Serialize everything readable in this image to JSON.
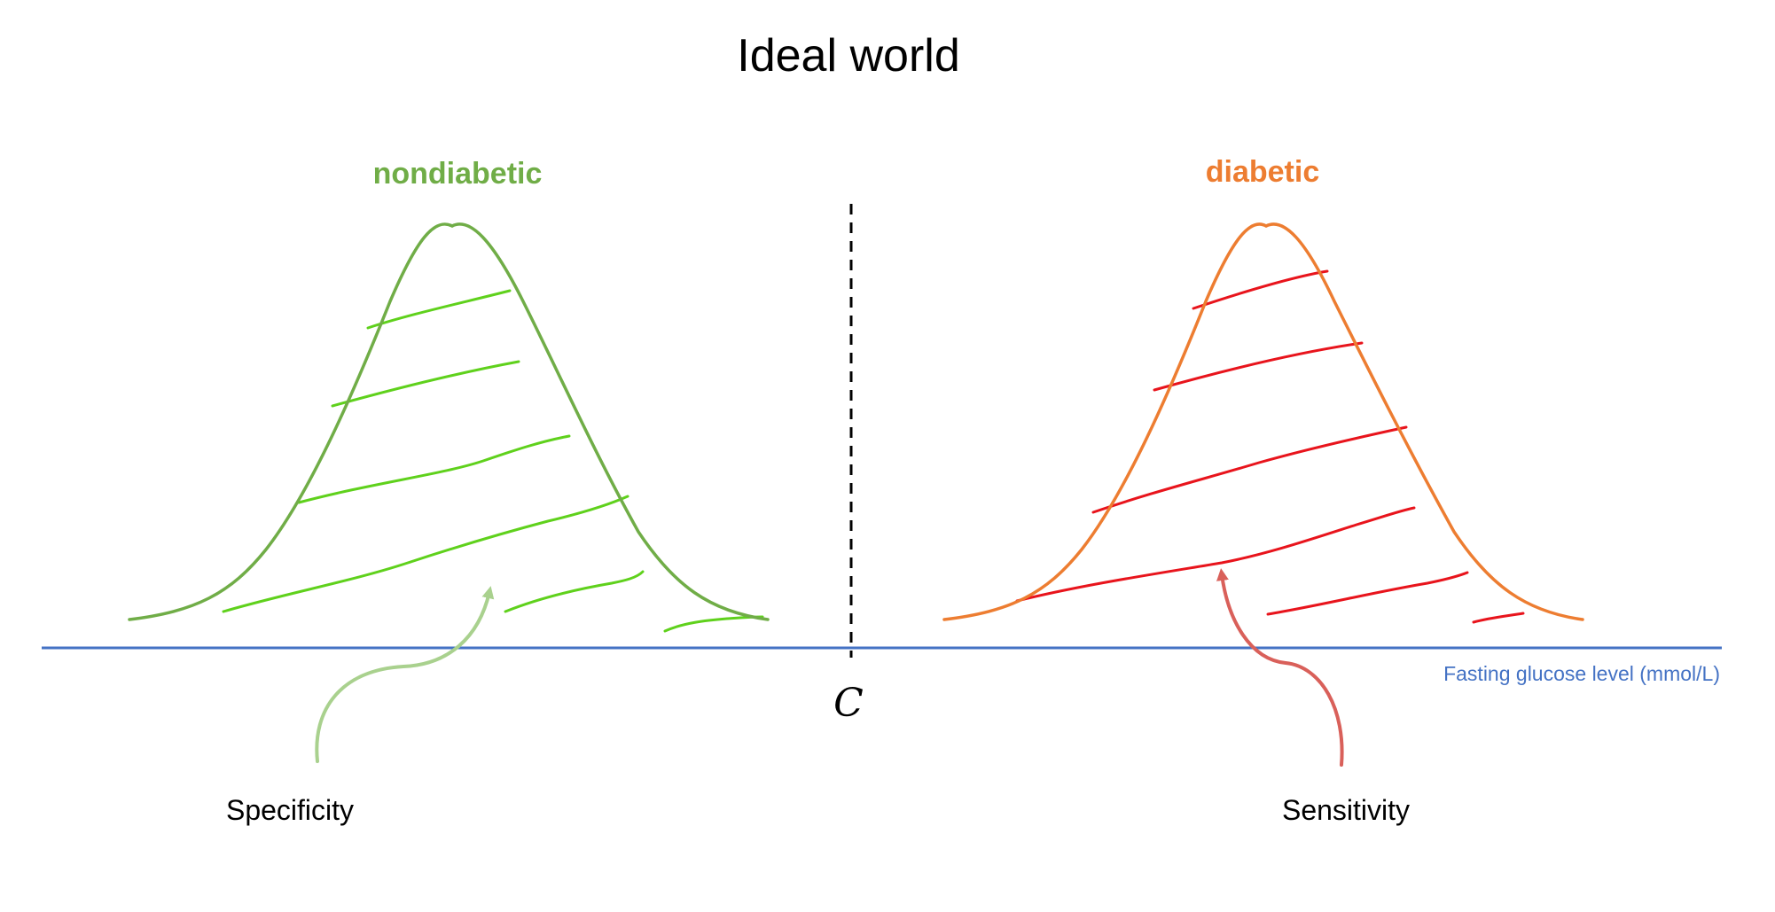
{
  "title": "Ideal world",
  "groups": {
    "nondiabetic": {
      "label": "nondiabetic",
      "color": "#70ad47",
      "hatch_color": "#5fd11c"
    },
    "diabetic": {
      "label": "diabetic",
      "color": "#ed7d31",
      "hatch_color": "#e8141c"
    }
  },
  "axis": {
    "label": "Fasting glucose level (mmol/L)",
    "color": "#4472c4"
  },
  "cutoff": {
    "label": "C",
    "color": "#000000"
  },
  "annotations": {
    "specificity": {
      "label": "Specificity",
      "arrow_color": "#a9d18e"
    },
    "sensitivity": {
      "label": "Sensitivity",
      "arrow_color": "#d9605a"
    }
  }
}
